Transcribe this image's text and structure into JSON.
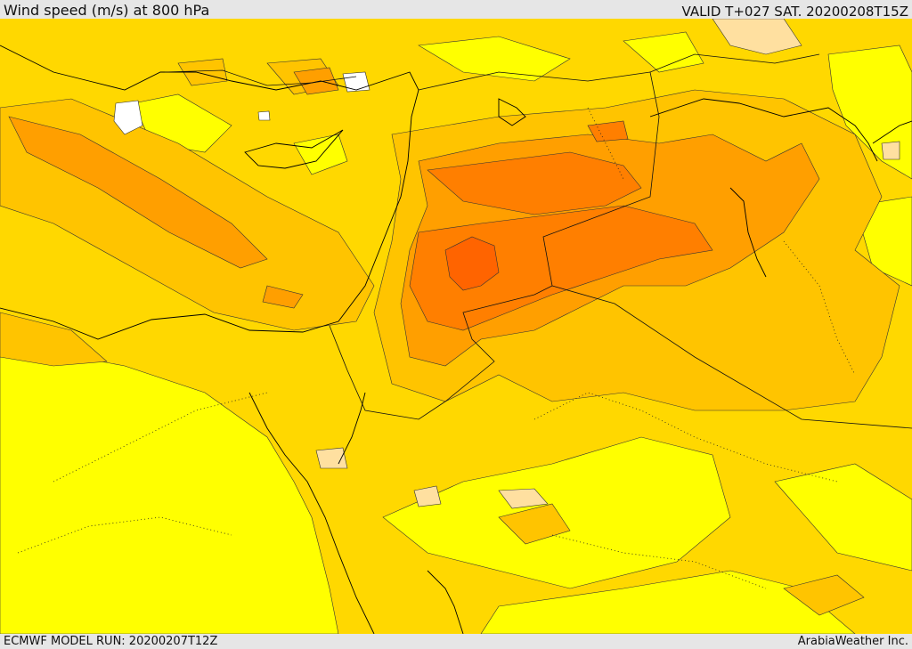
{
  "header": {
    "title": "Wind speed (m/s) at 800 hPa",
    "valid_time": "VALID T+027 SAT. 20200208T15Z"
  },
  "footer": {
    "model_run": "ECMWF MODEL RUN: 20200207T12Z",
    "credit": "ArabiaWeather Inc."
  },
  "colors": {
    "band_lowest": "#ffff00",
    "band_low": "#ffe000",
    "band_mid": "#ffc400",
    "band_high": "#ff9f00",
    "band_higher": "#ff7f00",
    "band_peak": "#ff6400",
    "calm_patch": "#ffffff",
    "pale_patch": "#ffe0a0"
  }
}
